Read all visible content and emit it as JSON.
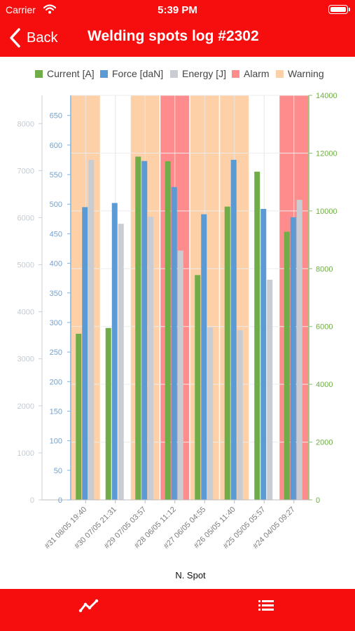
{
  "status_bar": {
    "carrier": "Carrier",
    "time": "5:39 PM"
  },
  "nav": {
    "back_label": "Back",
    "title": "Welding spots log #2302"
  },
  "colors": {
    "brand_red": "#f60d0d",
    "current": "#70ac47",
    "force": "#5b9bd5",
    "energy": "#c9cdd3",
    "alarm": "#ff8c8c",
    "warning": "#fdd0a8",
    "energy_axis_text": "#c1cbd7",
    "force_axis_text": "#6fa3d8",
    "current_axis_text": "#70ac47"
  },
  "tabs": [
    {
      "icon": "line-chart-icon"
    },
    {
      "icon": "list-icon"
    }
  ],
  "chart_data": {
    "type": "bar",
    "xlabel": "N. Spot",
    "categories": [
      "#31 08/05 19:40",
      "#30 07/05 21:31",
      "#29 07/05 03:57",
      "#28 06/05 11:12",
      "#27 06/05 04:55",
      "#26 05/05 11:40",
      "#25 05/05 05:57",
      "#24 04/05 09:27"
    ],
    "status": [
      "warning",
      "none",
      "warning",
      "alarm",
      "warning",
      "warning",
      "none",
      "alarm"
    ],
    "legend": [
      "Current [A]",
      "Force [daN]",
      "Energy [J]",
      "Alarm",
      "Warning"
    ],
    "series": [
      {
        "name": "Current [A]",
        "axis": "current",
        "values": [
          5750,
          5950,
          11880,
          11720,
          7780,
          10150,
          11360,
          9280
        ]
      },
      {
        "name": "Force [daN]",
        "axis": "force",
        "values": [
          495,
          502,
          573,
          529,
          483,
          575,
          492,
          478
        ]
      },
      {
        "name": "Energy [J]",
        "axis": "energy",
        "values": [
          7230,
          5870,
          6020,
          5300,
          3670,
          3610,
          4680,
          6380
        ]
      }
    ],
    "axes": {
      "energy": {
        "min": 0,
        "max": 8600,
        "ticks": [
          0,
          1000,
          2000,
          3000,
          4000,
          5000,
          6000,
          7000,
          8000
        ]
      },
      "force": {
        "min": 0,
        "max": 684,
        "ticks": [
          0,
          50,
          100,
          150,
          200,
          250,
          300,
          350,
          400,
          450,
          500,
          550,
          600,
          650
        ]
      },
      "current": {
        "min": 0,
        "max": 14000,
        "ticks": [
          0,
          2000,
          4000,
          6000,
          8000,
          10000,
          12000,
          14000
        ]
      }
    },
    "grid": true,
    "legend_position": "top"
  }
}
